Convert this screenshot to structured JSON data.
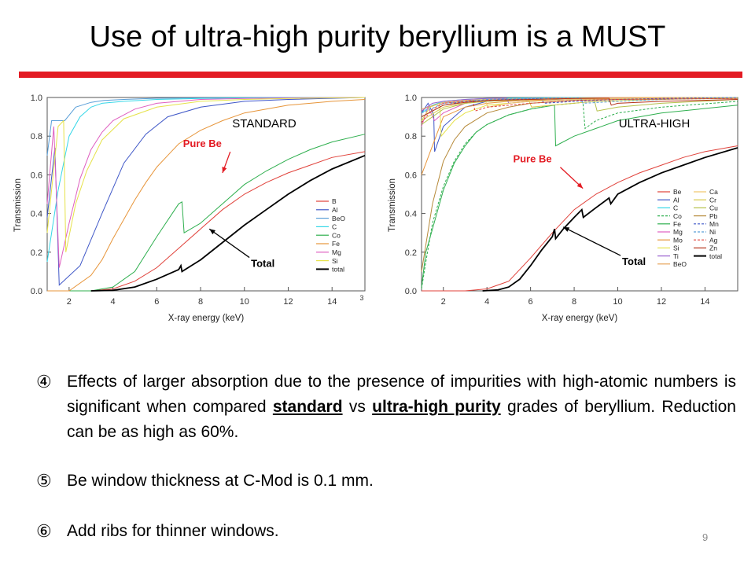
{
  "slide": {
    "title": "Use of ultra-high purity beryllium is a MUST",
    "page_number": "9"
  },
  "bullets": [
    {
      "number": "④",
      "text_before": "Effects of larger absorption due to the presence of impurities with high-atomic numbers is significant when compared ",
      "emph1": "standard",
      "text_middle": " vs ",
      "emph2": "ultra-high purity",
      "text_after": " grades of beryllium. Reduction can be as high as 60%."
    },
    {
      "number": "⑤",
      "text": "Be window thickness at C-Mod is 0.1 mm."
    },
    {
      "number": "⑥",
      "text": "Add ribs for thinner windows."
    }
  ],
  "colors": {
    "title_rule": "#e31b23",
    "annotation": "#e31b23",
    "axis": "#555555"
  },
  "chart_data": [
    {
      "type": "line",
      "title": "STANDARD",
      "xlabel": "X-ray energy (keV)",
      "ylabel": "Transmission",
      "xlim": [
        1,
        15.5
      ],
      "ylim": [
        0,
        1.0
      ],
      "xticks": [
        "2",
        "4",
        "6",
        "8",
        "10",
        "12",
        "14"
      ],
      "yticks": [
        "0.0",
        "0.2",
        "0.4",
        "0.6",
        "0.8",
        "1.0"
      ],
      "corner_label": "3",
      "grid": false,
      "legend_position": "right",
      "annotations": [
        {
          "text": "Pure Be",
          "color": "#e31b23",
          "x": 7.2,
          "y": 0.76,
          "arrow_to": [
            9.0,
            0.61
          ]
        },
        {
          "text": "Total",
          "color": "#000000",
          "x": 10.3,
          "y": 0.14,
          "arrow_to": [
            8.4,
            0.32
          ]
        }
      ],
      "series": [
        {
          "name": "B",
          "color": "#e0413a",
          "x": [
            1,
            2,
            3,
            4,
            5,
            6,
            7,
            8,
            9,
            10,
            11,
            12,
            13,
            14,
            15.5
          ],
          "y": [
            0,
            0,
            0,
            0.01,
            0.05,
            0.12,
            0.22,
            0.32,
            0.42,
            0.5,
            0.56,
            0.61,
            0.65,
            0.69,
            0.72
          ]
        },
        {
          "name": "Al",
          "color": "#3f57c7",
          "x": [
            1,
            1.35,
            1.55,
            2.5,
            3.5,
            4.5,
            5.5,
            6.5,
            8,
            10,
            12,
            15.5
          ],
          "y": [
            0.38,
            0.74,
            0.03,
            0.13,
            0.4,
            0.66,
            0.81,
            0.9,
            0.95,
            0.98,
            0.99,
            1.0
          ]
        },
        {
          "name": "BeO",
          "color": "#5a9fd8",
          "x": [
            1,
            1.2,
            1.8,
            2.3,
            3,
            3.6,
            4.5,
            6,
            8,
            10,
            12,
            15.5
          ],
          "y": [
            0.7,
            0.88,
            0.88,
            0.95,
            0.975,
            0.985,
            0.99,
            0.996,
            0.998,
            0.999,
            1.0,
            1.0
          ]
        },
        {
          "name": "C",
          "color": "#35d7e8",
          "x": [
            1,
            1.5,
            2,
            2.5,
            3,
            3.5,
            4.5,
            6,
            8,
            10,
            12,
            15.5
          ],
          "y": [
            0.15,
            0.52,
            0.8,
            0.9,
            0.95,
            0.97,
            0.98,
            0.99,
            0.995,
            0.998,
            0.999,
            1.0
          ]
        },
        {
          "name": "Co",
          "color": "#2eaf4e",
          "x": [
            1,
            2,
            3,
            4,
            5,
            6,
            7,
            7.15,
            7.25,
            8,
            9,
            10,
            11,
            12,
            13,
            14,
            15.5
          ],
          "y": [
            0,
            0,
            0,
            0.02,
            0.1,
            0.28,
            0.45,
            0.46,
            0.3,
            0.35,
            0.45,
            0.55,
            0.62,
            0.68,
            0.73,
            0.77,
            0.81
          ]
        },
        {
          "name": "Fe",
          "color": "#e7953a",
          "x": [
            1,
            2,
            3,
            3.5,
            4,
            4.5,
            5,
            5.5,
            6,
            6.5,
            7,
            8,
            9,
            10,
            11,
            12,
            13,
            14,
            15.5
          ],
          "y": [
            0,
            0,
            0.08,
            0.16,
            0.27,
            0.37,
            0.47,
            0.56,
            0.64,
            0.7,
            0.76,
            0.83,
            0.88,
            0.92,
            0.94,
            0.96,
            0.97,
            0.98,
            0.99
          ]
        },
        {
          "name": "Mg",
          "color": "#df5fc0",
          "x": [
            1,
            1.3,
            1.55,
            2,
            2.5,
            3,
            3.5,
            4,
            5,
            6,
            8,
            10,
            12,
            15.5
          ],
          "y": [
            0.45,
            0.85,
            0.12,
            0.35,
            0.58,
            0.73,
            0.82,
            0.88,
            0.94,
            0.97,
            0.99,
            0.995,
            0.998,
            1.0
          ]
        },
        {
          "name": "Si",
          "color": "#e6e24a",
          "x": [
            1,
            1.5,
            1.75,
            1.85,
            2.3,
            2.8,
            3.5,
            4.5,
            6,
            8,
            10,
            12,
            15.5
          ],
          "y": [
            0.3,
            0.85,
            0.88,
            0.2,
            0.45,
            0.62,
            0.78,
            0.89,
            0.95,
            0.98,
            0.99,
            0.995,
            1.0
          ]
        },
        {
          "name": "total",
          "color": "#000000",
          "x": [
            3,
            4,
            5,
            6,
            7,
            7.1,
            7.15,
            8,
            9,
            10,
            11,
            12,
            13,
            14,
            15.5
          ],
          "y": [
            0,
            0.003,
            0.02,
            0.06,
            0.11,
            0.13,
            0.1,
            0.16,
            0.25,
            0.34,
            0.42,
            0.5,
            0.57,
            0.63,
            0.7
          ]
        }
      ]
    },
    {
      "type": "line",
      "title": "ULTRA-HIGH",
      "xlabel": "X-ray energy (keV)",
      "ylabel": "Transmission",
      "xlim": [
        1,
        15.5
      ],
      "ylim": [
        0,
        1.0
      ],
      "xticks": [
        "2",
        "4",
        "6",
        "8",
        "10",
        "12",
        "14"
      ],
      "yticks": [
        "0.0",
        "0.2",
        "0.4",
        "0.6",
        "0.8",
        "1.0"
      ],
      "grid": false,
      "legend_position": "right",
      "annotations": [
        {
          "text": "Pure Be",
          "color": "#e31b23",
          "x": 5.2,
          "y": 0.68,
          "arrow_to": [
            8.4,
            0.53
          ]
        },
        {
          "text": "Total",
          "color": "#000000",
          "x": 10.2,
          "y": 0.15,
          "arrow_to": [
            7.5,
            0.33
          ]
        }
      ],
      "series": [
        {
          "name": "Be",
          "color": "#e0413a",
          "x": [
            1,
            2,
            3,
            4,
            5,
            6,
            7,
            8,
            9,
            10,
            11,
            12,
            13,
            14,
            15.5
          ],
          "y": [
            0,
            0,
            0,
            0.01,
            0.05,
            0.17,
            0.3,
            0.42,
            0.5,
            0.56,
            0.61,
            0.65,
            0.69,
            0.72,
            0.75
          ]
        },
        {
          "name": "Al",
          "color": "#3f57c7",
          "x": [
            1,
            1.3,
            1.56,
            1.6,
            2,
            3,
            4,
            6,
            8,
            10,
            15.5
          ],
          "y": [
            0.92,
            0.97,
            0.91,
            0.72,
            0.85,
            0.95,
            0.98,
            0.99,
            0.995,
            1.0,
            1.0
          ]
        },
        {
          "name": "C",
          "color": "#35d7e8",
          "x": [
            1,
            1.5,
            2,
            3,
            4,
            6,
            8,
            10,
            15.5
          ],
          "y": [
            0.92,
            0.96,
            0.98,
            0.99,
            0.995,
            0.998,
            1.0,
            1.0,
            1.0
          ]
        },
        {
          "name": "Co",
          "color": "#2eaf4e",
          "dashed": true,
          "x": [
            1,
            1.2,
            1.5,
            2,
            2.5,
            3,
            3.5,
            4,
            5,
            6,
            7,
            8,
            8.4,
            8.5,
            9,
            10,
            12,
            15.5
          ],
          "y": [
            0.01,
            0.15,
            0.35,
            0.54,
            0.67,
            0.76,
            0.82,
            0.86,
            0.91,
            0.94,
            0.96,
            0.97,
            0.975,
            0.84,
            0.88,
            0.92,
            0.95,
            0.98
          ]
        },
        {
          "name": "Fe",
          "color": "#2eaf4e",
          "x": [
            1,
            1.2,
            1.5,
            2,
            2.5,
            3,
            3.5,
            4,
            5,
            6,
            7.1,
            7.15,
            8,
            9,
            10,
            12,
            15.5
          ],
          "y": [
            0.02,
            0.2,
            0.32,
            0.52,
            0.66,
            0.75,
            0.82,
            0.86,
            0.91,
            0.94,
            0.96,
            0.75,
            0.8,
            0.84,
            0.88,
            0.92,
            0.96
          ]
        },
        {
          "name": "Mg",
          "color": "#df5fc0",
          "x": [
            1,
            1.3,
            1.6,
            2,
            3,
            4,
            6,
            8,
            10,
            15.5
          ],
          "y": [
            0.85,
            0.95,
            0.88,
            0.92,
            0.97,
            0.985,
            0.995,
            0.998,
            1.0,
            1.0
          ]
        },
        {
          "name": "Mo",
          "color": "#e7953a",
          "x": [
            1,
            2,
            3,
            4,
            5,
            6,
            8,
            10,
            12,
            15.5
          ],
          "y": [
            0.6,
            0.9,
            0.95,
            0.97,
            0.98,
            0.985,
            0.99,
            0.995,
            0.998,
            1.0
          ]
        },
        {
          "name": "Si",
          "color": "#e6e24a",
          "x": [
            1,
            1.4,
            1.83,
            1.9,
            2.5,
            3,
            4,
            6,
            8,
            10,
            15.5
          ],
          "y": [
            0.88,
            0.95,
            0.97,
            0.8,
            0.88,
            0.92,
            0.96,
            0.98,
            0.99,
            0.995,
            1.0
          ]
        },
        {
          "name": "Ti",
          "color": "#9a60cf",
          "x": [
            1,
            1.5,
            2,
            3,
            4,
            4.9,
            5,
            6,
            8,
            10,
            15.5
          ],
          "y": [
            0.93,
            0.97,
            0.98,
            0.99,
            0.995,
            0.997,
            0.97,
            0.98,
            0.99,
            0.995,
            1.0
          ]
        },
        {
          "name": "BeO",
          "color": "#e6a35a",
          "x": [
            1,
            2,
            3,
            4,
            6,
            8,
            10,
            15.5
          ],
          "y": [
            0.94,
            0.975,
            0.985,
            0.99,
            0.995,
            0.998,
            1.0,
            1.0
          ]
        },
        {
          "name": "Ca",
          "color": "#efc66a",
          "x": [
            1,
            2,
            3,
            3.9,
            4.05,
            5,
            6,
            8,
            10,
            15.5
          ],
          "y": [
            0.9,
            0.96,
            0.98,
            0.99,
            0.95,
            0.97,
            0.98,
            0.99,
            0.995,
            1.0
          ]
        },
        {
          "name": "Cr",
          "color": "#d7c84a",
          "x": [
            1,
            2,
            3,
            4,
            5,
            5.9,
            6.05,
            7,
            9,
            12,
            15.5
          ],
          "y": [
            0.88,
            0.95,
            0.97,
            0.98,
            0.985,
            0.99,
            0.95,
            0.96,
            0.98,
            0.99,
            1.0
          ]
        },
        {
          "name": "Cu",
          "color": "#b5c14a",
          "x": [
            1,
            2,
            3,
            4,
            6,
            8,
            8.9,
            9.05,
            10,
            12,
            15.5
          ],
          "y": [
            0.86,
            0.94,
            0.97,
            0.98,
            0.99,
            0.995,
            0.996,
            0.93,
            0.95,
            0.97,
            0.99
          ]
        },
        {
          "name": "Pb",
          "color": "#b68a3a",
          "x": [
            1,
            1.5,
            2,
            2.5,
            3,
            4,
            5,
            6,
            8,
            10,
            15.5
          ],
          "y": [
            0.1,
            0.45,
            0.67,
            0.78,
            0.85,
            0.92,
            0.95,
            0.97,
            0.985,
            0.99,
            0.995
          ]
        },
        {
          "name": "Mn",
          "color": "#3f57c7",
          "dashed": true,
          "x": [
            1,
            2,
            3,
            4,
            5,
            6,
            6.5,
            6.6,
            8,
            10,
            12,
            15.5
          ],
          "y": [
            0.9,
            0.96,
            0.98,
            0.985,
            0.99,
            0.993,
            0.995,
            0.97,
            0.98,
            0.99,
            0.995,
            1.0
          ]
        },
        {
          "name": "Ni",
          "color": "#5a9fd8",
          "dashed": true,
          "x": [
            1,
            2,
            3,
            4,
            6,
            8,
            8.3,
            8.4,
            10,
            12,
            15.5
          ],
          "y": [
            0.92,
            0.97,
            0.98,
            0.99,
            0.995,
            0.997,
            0.998,
            0.97,
            0.98,
            0.99,
            1.0
          ]
        },
        {
          "name": "Ag",
          "color": "#e0413a",
          "dashed": true,
          "x": [
            1,
            1.5,
            2,
            3,
            3.35,
            3.45,
            4,
            6,
            8,
            10,
            15.5
          ],
          "y": [
            0.87,
            0.94,
            0.97,
            0.98,
            0.985,
            0.93,
            0.95,
            0.97,
            0.985,
            0.99,
            0.995
          ]
        },
        {
          "name": "Zn",
          "color": "#b5321a",
          "x": [
            1,
            2,
            3,
            4,
            6,
            8,
            9.6,
            9.7,
            10,
            12,
            15.5
          ],
          "y": [
            0.9,
            0.96,
            0.975,
            0.985,
            0.99,
            0.995,
            0.996,
            0.96,
            0.97,
            0.98,
            0.99
          ]
        },
        {
          "name": "total",
          "color": "#000000",
          "x": [
            3.8,
            4.5,
            5,
            5.5,
            6,
            6.5,
            7,
            7.1,
            7.15,
            7.5,
            8,
            8.35,
            8.42,
            9,
            9.6,
            9.68,
            10,
            11,
            12,
            13,
            14,
            15.5
          ],
          "y": [
            0,
            0.005,
            0.02,
            0.06,
            0.13,
            0.21,
            0.28,
            0.32,
            0.27,
            0.32,
            0.38,
            0.42,
            0.38,
            0.43,
            0.48,
            0.45,
            0.5,
            0.56,
            0.61,
            0.65,
            0.69,
            0.74
          ]
        }
      ]
    }
  ]
}
